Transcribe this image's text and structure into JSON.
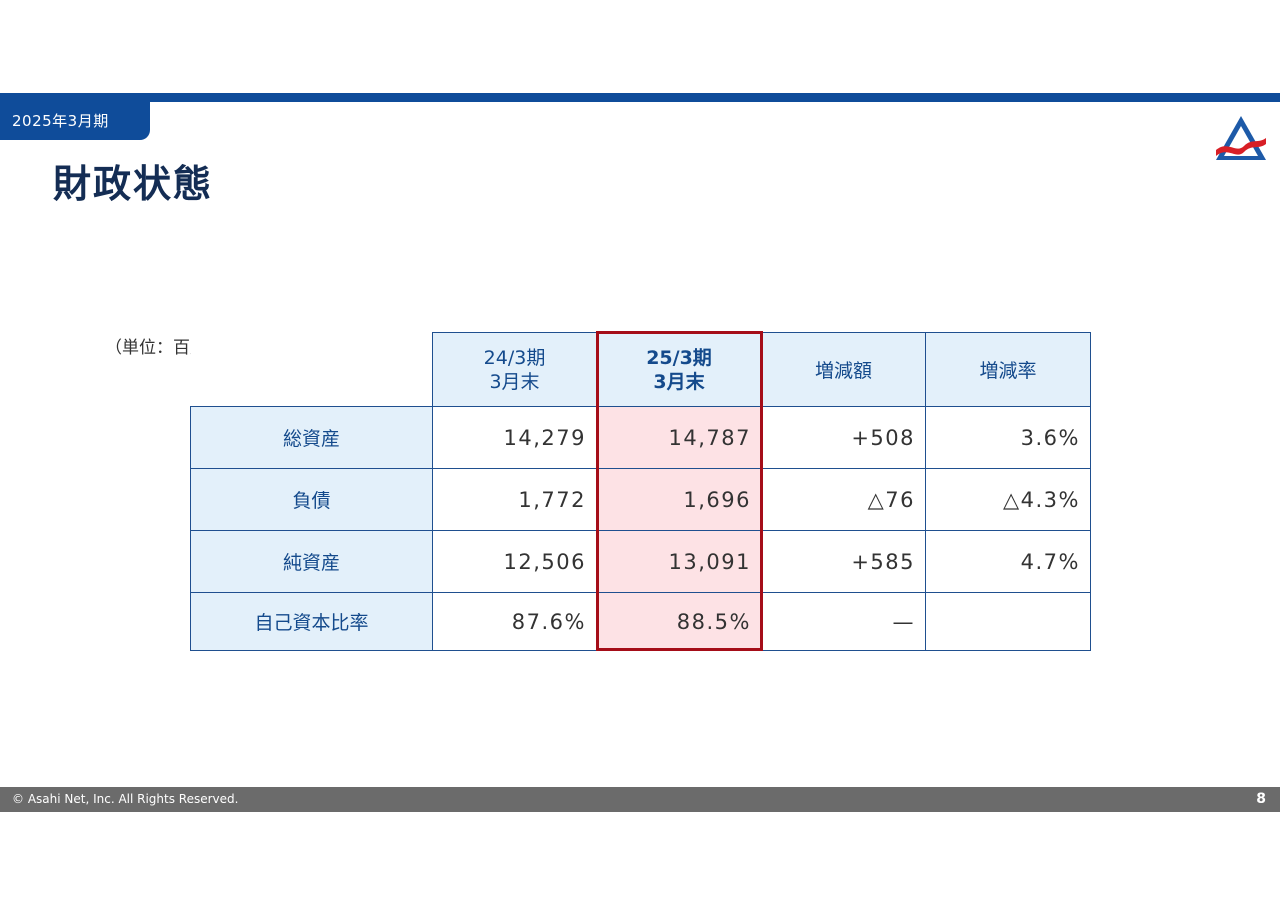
{
  "header": {
    "period": "2025年3月期",
    "title": "財政状態"
  },
  "unit_note": "（単位：百万円）",
  "table": {
    "columns": [
      {
        "line1": "24/3期",
        "line2": "3月末"
      },
      {
        "line1": "25/3期",
        "line2": "3月末"
      },
      {
        "line1": "増減額",
        "line2": ""
      },
      {
        "line1": "増減率",
        "line2": ""
      }
    ],
    "rows": [
      {
        "label": "総資産",
        "prev": "14,279",
        "curr": "14,787",
        "change": "+508",
        "rate": "3.6%"
      },
      {
        "label": "負債",
        "prev": "1,772",
        "curr": "1,696",
        "change": "△76",
        "rate": "△4.3%"
      },
      {
        "label": "純資産",
        "prev": "12,506",
        "curr": "13,091",
        "change": "+585",
        "rate": "4.7%"
      },
      {
        "label": "自己資本比率",
        "prev": "87.6%",
        "curr": "88.5%",
        "change": "—",
        "rate": ""
      }
    ]
  },
  "footer": {
    "copyright": "© Asahi Net, Inc. All Rights Reserved.",
    "page_number": "8"
  },
  "colors": {
    "brand_blue": "#0f4c9a",
    "title_navy": "#142d54",
    "header_fill": "#e3f0fa",
    "highlight_fill": "#fde2e5",
    "highlight_border": "#a50d18",
    "footer_gray": "#6b6b6b"
  },
  "icons": {
    "logo": "asahi-net-logo-icon"
  }
}
